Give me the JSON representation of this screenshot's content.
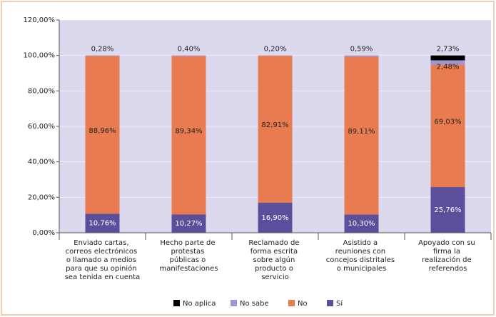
{
  "chart_data": {
    "type": "stacked_bar",
    "categories": [
      "Enviado cartas,\ncorreos electrónicos\no llamado a medios\npara que su opinión\nsea tenida en cuenta",
      "Hecho parte de\nprotestas\npúblicas o\nmanifestaciones",
      "Reclamado de\nforma escrita\nsobre algún\nproducto o\nservicio",
      "Asistido a\nreuniones con\nconcejos distritales\no municipales",
      "Apoyado con su\nfirma la\nrealización de\nreferendos"
    ],
    "series": [
      {
        "name": "Sí",
        "color": "#5b4f9c",
        "values": [
          10.76,
          10.27,
          16.9,
          10.3,
          25.76
        ],
        "value_labels": [
          "10,76%",
          "10,27%",
          "16,90%",
          "10,30%",
          "25,76%"
        ]
      },
      {
        "name": "No",
        "color": "#e87b4f",
        "values": [
          88.96,
          89.34,
          82.91,
          89.11,
          69.03
        ],
        "value_labels": [
          "88,96%",
          "89,34%",
          "82,91%",
          "89,11%",
          "69,03%"
        ]
      },
      {
        "name": "No sabe",
        "color": "#9e96cf",
        "values": [
          0.28,
          0.4,
          0.2,
          0.59,
          2.48
        ],
        "value_labels": [
          "0,28%",
          "0,40%",
          "0,20%",
          "0,59%",
          "2,48%"
        ]
      },
      {
        "name": "No aplica",
        "color": "#000000",
        "values": [
          null,
          null,
          null,
          null,
          2.73
        ],
        "value_labels": [
          null,
          null,
          null,
          null,
          "2,73%"
        ]
      }
    ],
    "ylim": [
      0,
      120
    ],
    "yticks": [
      {
        "value": 0,
        "label": "0,00%"
      },
      {
        "value": 20,
        "label": "20,00%"
      },
      {
        "value": 40,
        "label": "40,00%"
      },
      {
        "value": 60,
        "label": "60,00%"
      },
      {
        "value": 80,
        "label": "80,00%"
      },
      {
        "value": 100,
        "label": "100,00%"
      },
      {
        "value": 120,
        "label": "120,00%"
      }
    ],
    "grid": true,
    "legend": "bottom"
  }
}
